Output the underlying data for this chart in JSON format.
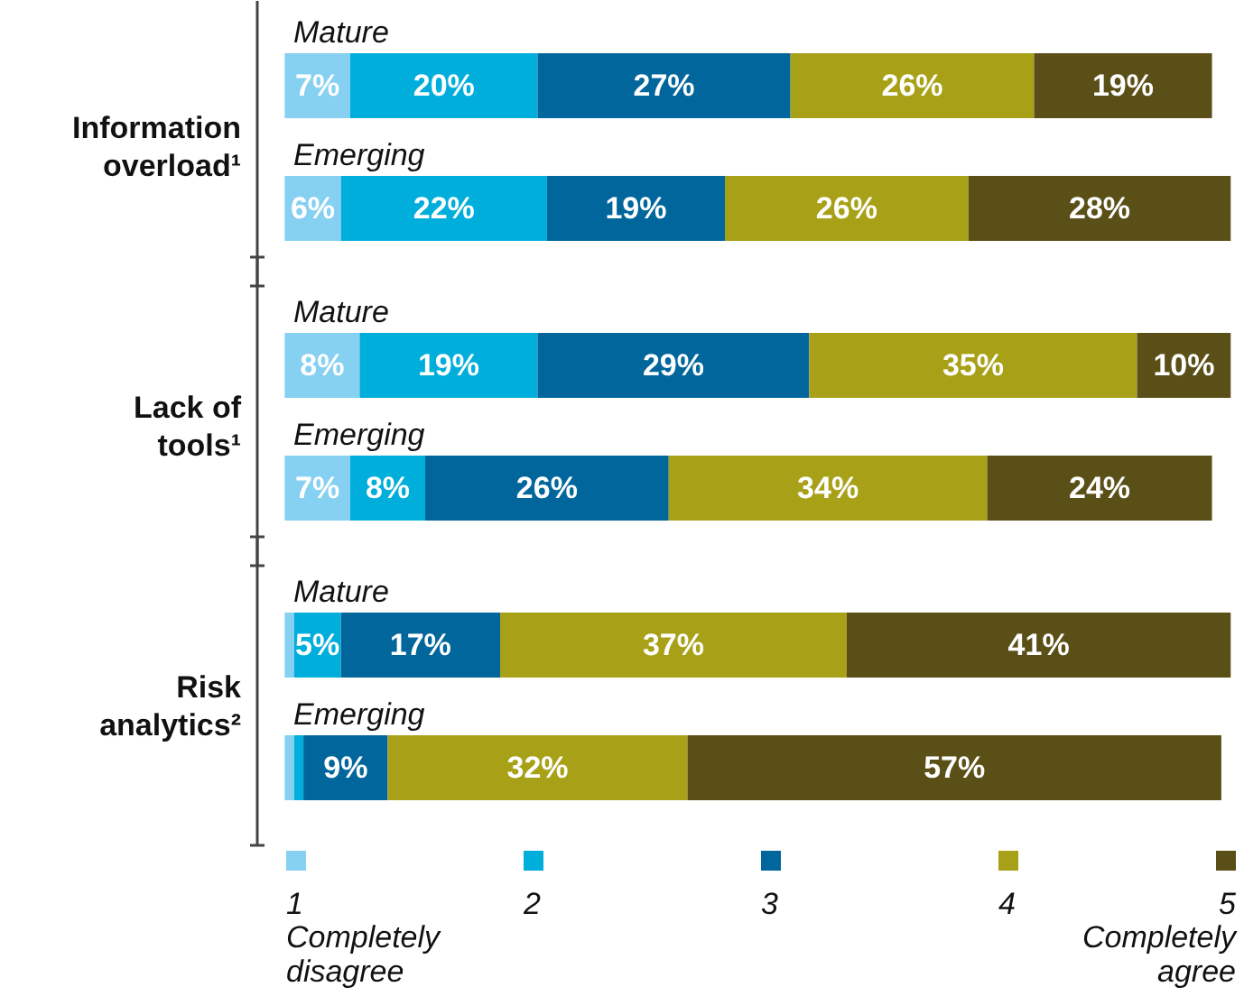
{
  "chart_data": {
    "type": "bar",
    "stacked": true,
    "orientation": "horizontal",
    "legend": "bottom",
    "categories": [
      "Mature",
      "Emerging",
      "Mature",
      "Emerging",
      "Mature",
      "Emerging"
    ],
    "annotations": [
      "Information\noverload¹",
      "Lack of\ntools¹",
      "Risk\nanalytics²"
    ],
    "series": [
      {
        "name": "1\nCompletely\ndisagree",
        "color": "#86d0f2",
        "values": [
          7,
          6,
          8,
          7,
          1,
          1
        ],
        "value_labels": [
          "7%",
          "6%",
          "8%",
          "7%",
          null,
          null
        ]
      },
      {
        "name": "2",
        "color": "#00aedb",
        "values": [
          20,
          22,
          19,
          8,
          5,
          1
        ],
        "value_labels": [
          "20%",
          "22%",
          "19%",
          "8%",
          "5%",
          null
        ]
      },
      {
        "name": "3",
        "color": "#00669c",
        "values": [
          27,
          19,
          29,
          26,
          17,
          9
        ],
        "value_labels": [
          "27%",
          "19%",
          "29%",
          "26%",
          "17%",
          "9%"
        ]
      },
      {
        "name": "4",
        "color": "#a8a117",
        "values": [
          26,
          26,
          35,
          34,
          37,
          32
        ],
        "value_labels": [
          "26%",
          "26%",
          "35%",
          "34%",
          "37%",
          "32%"
        ]
      },
      {
        "name": "5\nCompletely\nagree",
        "color": "#5b4f18",
        "values": [
          19,
          28,
          10,
          24,
          41,
          57
        ],
        "value_labels": [
          "19%",
          "28%",
          "10%",
          "24%",
          "41%",
          "57%"
        ]
      }
    ]
  }
}
